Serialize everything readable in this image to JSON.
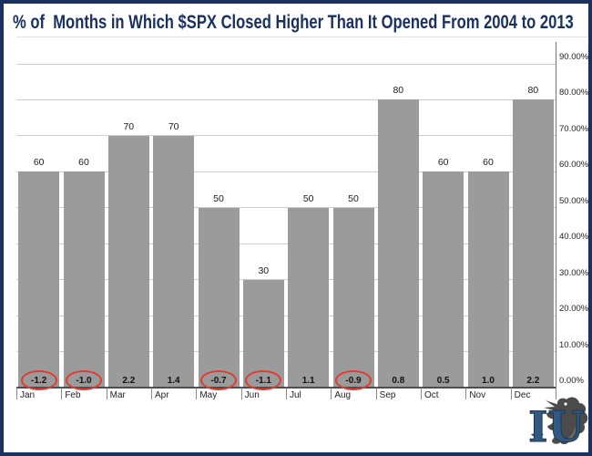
{
  "page": {
    "title": "% of  Months in Which $SPX Closed Higher Than It Opened From 2004 to 2013",
    "border_color": "#1a3160",
    "background": "#ffffff"
  },
  "chart_data": {
    "type": "bar",
    "title": "% of  Months in Which $SPX Closed Higher Than It Opened From 2004 to 2013",
    "categories": [
      "Jan",
      "Feb",
      "Mar",
      "Apr",
      "May",
      "Jun",
      "Jul",
      "Aug",
      "Sep",
      "Oct",
      "Nov",
      "Dec"
    ],
    "series": [
      {
        "name": "pct_of_months_closed_higher",
        "values": [
          60,
          60,
          70,
          70,
          50,
          30,
          50,
          50,
          80,
          60,
          60,
          80
        ]
      },
      {
        "name": "avg_monthly_change_footer",
        "values": [
          -1.2,
          -1.0,
          2.2,
          1.4,
          -0.7,
          -1.1,
          1.1,
          -0.9,
          0.8,
          0.5,
          1.0,
          2.2
        ]
      }
    ],
    "circled_categories": [
      "Jan",
      "Feb",
      "May",
      "Jun",
      "Aug"
    ],
    "y_axis": {
      "side": "right",
      "min": 0,
      "max": 90,
      "step": 10,
      "tick_labels": [
        "0.00%",
        "10.00%",
        "20.00%",
        "30.00%",
        "40.00%",
        "50.00%",
        "60.00%",
        "70.00%",
        "80.00%",
        "90.00%"
      ]
    },
    "grid": true,
    "legend": "none",
    "bar_color": "#9b9b9b",
    "highlight_circle_color": "#e13b30"
  },
  "logo": {
    "text": "IU"
  }
}
